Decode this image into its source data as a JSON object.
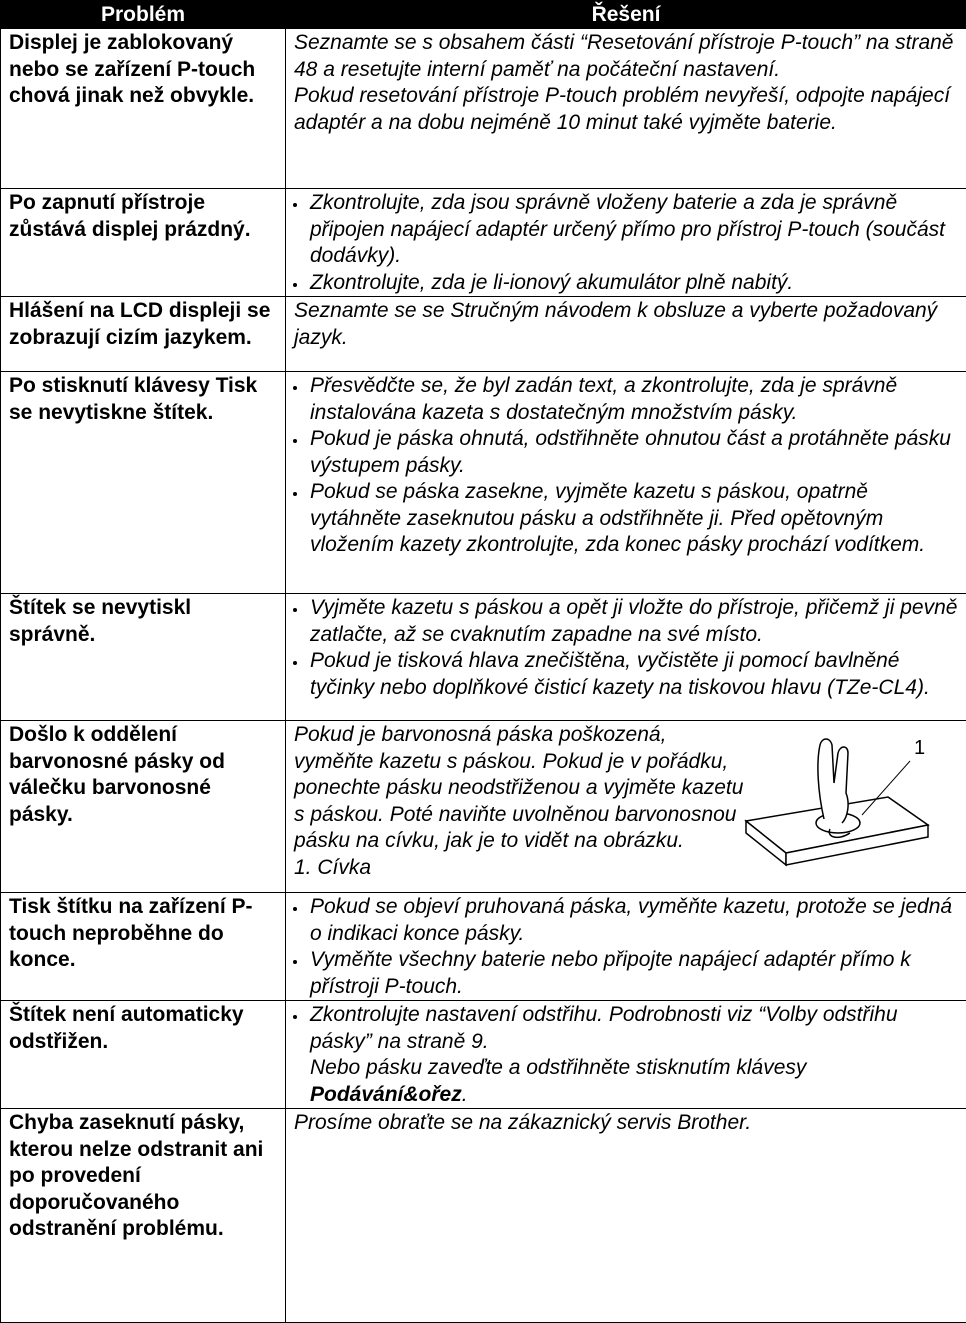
{
  "header": {
    "problem": "Problém",
    "solution": "Řešení"
  },
  "rows": [
    {
      "problem": "Displej je zablokovaný nebo se zařízení P-touch chová jinak než obvykle.",
      "paragraphs": [
        "Seznamte se s obsahem části “Resetování přístroje P-touch” na straně 48 a resetujte interní paměť na počáteční nastavení.",
        "Pokud resetování přístroje P-touch problém nevyřeší, odpojte napájecí adaptér a na dobu nejméně 10 minut také vyjměte baterie."
      ]
    },
    {
      "problem": "Po zapnutí přístroje zůstává displej prázdný.",
      "bullets": [
        "Zkontrolujte, zda jsou správně vloženy baterie a zda je správně připojen napájecí adaptér určený přímo pro přístroj P-touch (součást dodávky).",
        "Zkontrolujte, zda je li-ionový akumulátor plně nabitý."
      ]
    },
    {
      "problem": "Hlášení na LCD displeji se zobrazují cizím jazykem.",
      "paragraphs": [
        "Seznamte se se Stručným návodem k obsluze a vyberte požadovaný jazyk."
      ]
    },
    {
      "problem": "Po stisknutí klávesy Tisk se nevytiskne štítek.",
      "bullets": [
        "Přesvědčte se, že byl zadán text, a zkontrolujte, zda je správně instalována kazeta s dostatečným množstvím pásky.",
        "Pokud je páska ohnutá, odstřihněte ohnutou část a protáhněte pásku výstupem pásky.",
        "Pokud se páska zasekne, vyjměte kazetu s páskou, opatrně vytáhněte zaseknutou pásku a odstřihněte ji. Před opětovným vložením kazety zkontrolujte, zda konec pásky prochází vodítkem."
      ]
    },
    {
      "problem": "Štítek se nevytiskl správně.",
      "bullets": [
        "Vyjměte kazetu s páskou a opět ji vložte do přístroje, přičemž ji pevně zatlačte, až se cvaknutím zapadne na své místo.",
        "Pokud je tisková hlava znečištěna, vyčistěte ji pomocí bavlněné tyčinky nebo doplňkové čisticí kazety na tiskovou hlavu (TZe-CL4)."
      ]
    },
    {
      "problem": "Došlo k oddělení barvonosné pásky od válečku barvonosné pásky.",
      "paragraphs": [
        "Pokud je barvonosná páska poškozená, vyměňte kazetu s páskou. Pokud je v pořádku, ponechte pásku neodstřiženou a vyjměte kazetu s páskou. Poté naviňte uvolněnou barvonosnou pásku na cívku, jak je to vidět na obrázku.",
        "1. Cívka"
      ],
      "figure_label": "1"
    },
    {
      "problem": "Tisk štítku na zařízení P-touch neproběhne do konce.",
      "bullets": [
        "Pokud se objeví pruhovaná páska, vyměňte kazetu, protože se jedná o indikaci konce pásky.",
        "Vyměňte všechny baterie nebo připojte napájecí adaptér přímo k přístroji P-touch."
      ]
    },
    {
      "problem": "Štítek není automaticky odstřižen.",
      "bullets": [
        "Zkontrolujte nastavení odstřihu. Podrobnosti viz “Volby odstřihu pásky” na straně 9."
      ],
      "continuation": {
        "text": "Nebo pásku zaveďte a odstřihněte stisknutím klávesy ",
        "key": "Podávání&ořez",
        "end": "."
      }
    },
    {
      "problem": "Chyba zaseknutí pásky, kterou nelze odstranit ani po provedení doporučovaného odstranění problému.",
      "paragraphs": [
        "Prosíme obraťte se na zákaznický servis Brother."
      ]
    }
  ]
}
